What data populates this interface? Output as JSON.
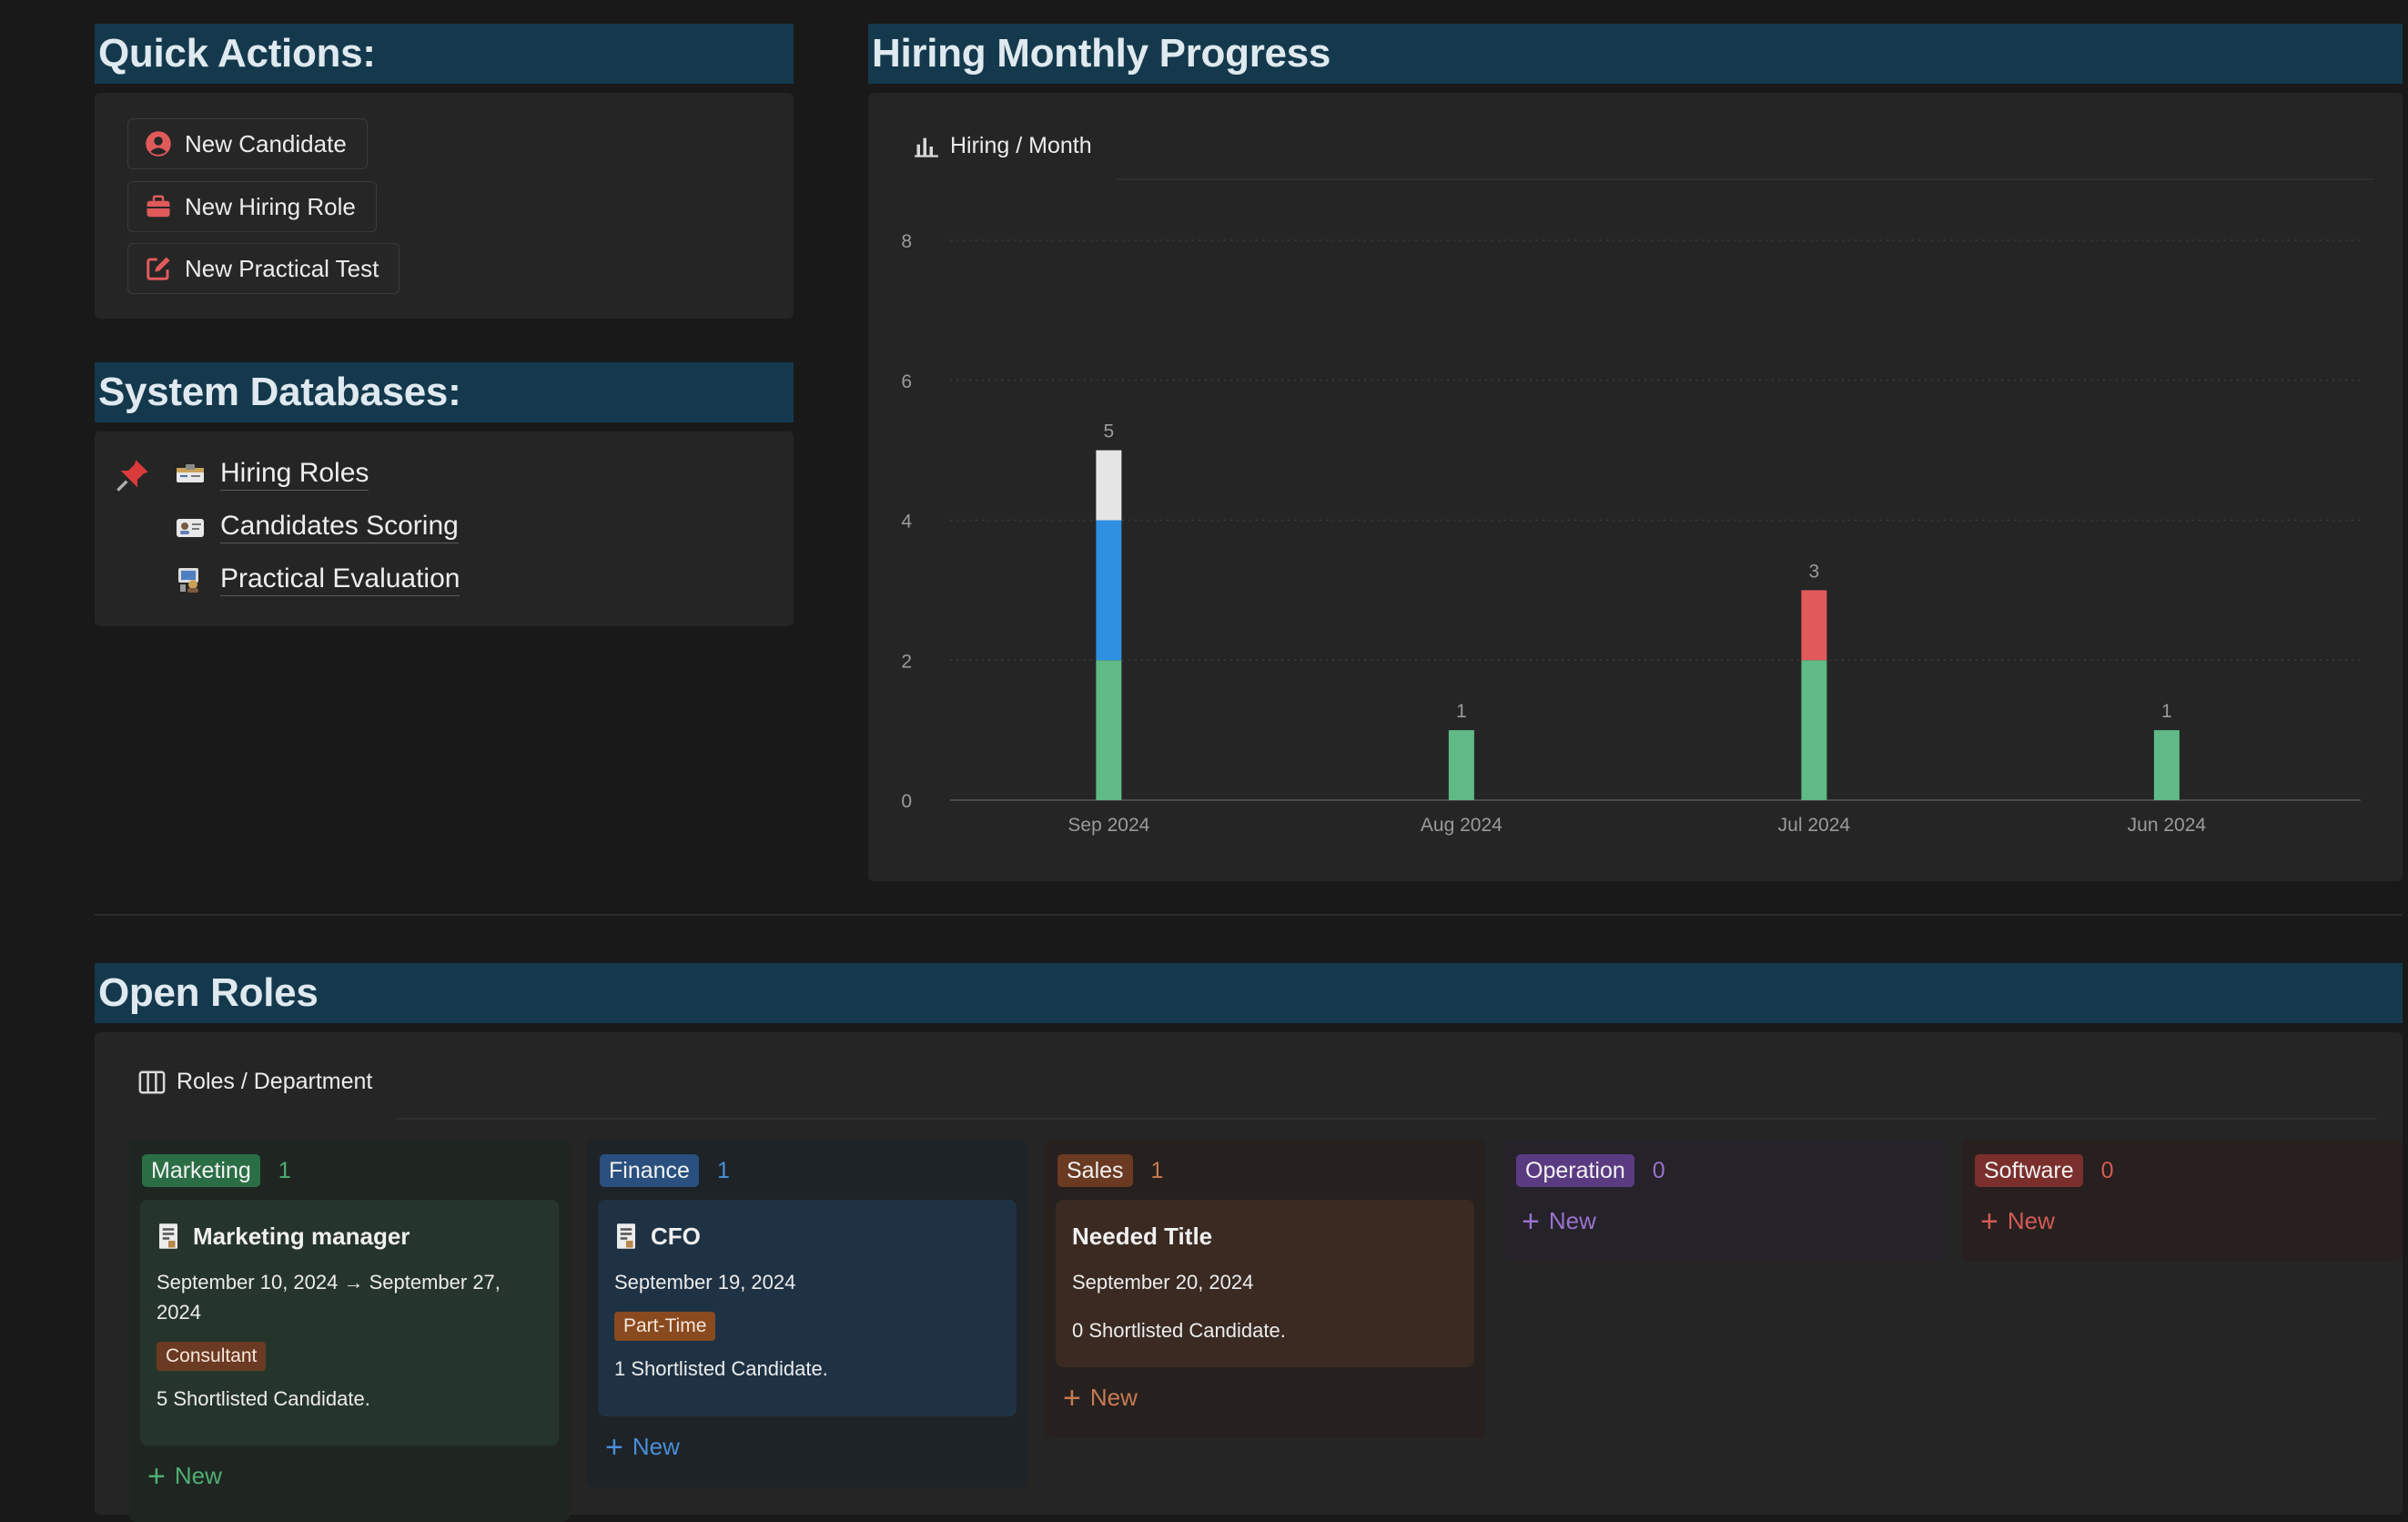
{
  "quick_actions": {
    "title": "Quick Actions:",
    "buttons": [
      {
        "label": "New Candidate",
        "icon": "person-circle-icon"
      },
      {
        "label": "New Hiring Role",
        "icon": "briefcase-icon"
      },
      {
        "label": "New Practical Test",
        "icon": "edit-square-icon"
      }
    ]
  },
  "system_databases": {
    "title": "System Databases:",
    "items": [
      {
        "label": "Hiring Roles",
        "icon": "id-card-icon"
      },
      {
        "label": "Candidates Scoring",
        "icon": "scoring-card-icon"
      },
      {
        "label": "Practical Evaluation",
        "icon": "evaluation-icon"
      }
    ],
    "pin_icon": "pushpin-icon"
  },
  "hiring_progress": {
    "title": "Hiring Monthly Progress",
    "view_label": "Hiring / Month"
  },
  "chart_data": {
    "type": "bar",
    "stacked": true,
    "categories": [
      "Sep 2024",
      "Aug 2024",
      "Jul 2024",
      "Jun 2024"
    ],
    "series": [
      {
        "color": "#5fba86",
        "values": [
          2,
          1,
          2,
          1
        ]
      },
      {
        "color": "#e05a5a",
        "values": [
          0,
          0,
          1,
          0
        ]
      },
      {
        "color": "#2f8fe0",
        "values": [
          2,
          0,
          0,
          0
        ]
      },
      {
        "color": "#e5e5e5",
        "values": [
          1,
          0,
          0,
          0
        ]
      }
    ],
    "totals": [
      5,
      1,
      3,
      1
    ],
    "ylim": [
      0,
      8
    ],
    "yticks": [
      0,
      2,
      4,
      6,
      8
    ],
    "grid": true,
    "legend": "none"
  },
  "open_roles": {
    "title": "Open Roles",
    "view_label": "Roles / Department",
    "new_label": "New",
    "columns": [
      {
        "name": "Marketing",
        "count": "1",
        "cards": [
          {
            "title": "Marketing manager",
            "date": "September 10, 2024 → September 27, 2024",
            "tag": "Consultant",
            "shortlisted": "5 Shortlisted Candidate."
          }
        ]
      },
      {
        "name": "Finance",
        "count": "1",
        "cards": [
          {
            "title": "CFO",
            "date": "September 19, 2024",
            "tag": "Part-Time",
            "shortlisted": "1 Shortlisted Candidate."
          }
        ]
      },
      {
        "name": "Sales",
        "count": "1",
        "cards": [
          {
            "title": "Needed Title",
            "date": "September 20, 2024",
            "shortlisted": "0 Shortlisted Candidate."
          }
        ]
      },
      {
        "name": "Operation",
        "count": "0",
        "cards": []
      },
      {
        "name": "Software",
        "count": "0",
        "cards": []
      }
    ]
  },
  "colors": {
    "section_header_bg": "#14394d",
    "marketing": "#2b6e45",
    "finance": "#29507e",
    "sales": "#6b3a22",
    "operation": "#5a3b82",
    "software": "#7a2f2d"
  }
}
